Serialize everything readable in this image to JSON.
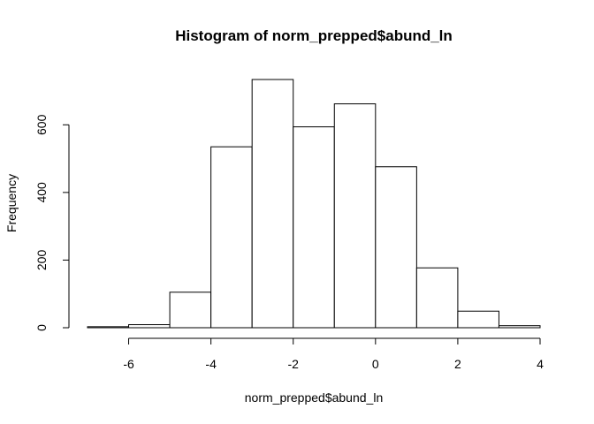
{
  "chart_data": {
    "type": "bar",
    "title": "Histogram of norm_prepped$abund_ln",
    "xlabel": "norm_prepped$abund_ln",
    "ylabel": "Frequency",
    "bins": [
      {
        "start": -7,
        "end": -6,
        "count": 3
      },
      {
        "start": -6,
        "end": -5,
        "count": 9
      },
      {
        "start": -5,
        "end": -4,
        "count": 105
      },
      {
        "start": -4,
        "end": -3,
        "count": 535
      },
      {
        "start": -3,
        "end": -2,
        "count": 734
      },
      {
        "start": -2,
        "end": -1,
        "count": 594
      },
      {
        "start": -1,
        "end": 0,
        "count": 662
      },
      {
        "start": 0,
        "end": 1,
        "count": 476
      },
      {
        "start": 1,
        "end": 2,
        "count": 177
      },
      {
        "start": 2,
        "end": 3,
        "count": 49
      },
      {
        "start": 3,
        "end": 4,
        "count": 6
      }
    ],
    "x_ticks": [
      "-6",
      "-4",
      "-2",
      "0",
      "2",
      "4"
    ],
    "y_ticks": [
      "0",
      "200",
      "400",
      "600"
    ],
    "xlim": [
      -7,
      4
    ],
    "ylim": [
      0,
      734
    ],
    "grid": false
  }
}
